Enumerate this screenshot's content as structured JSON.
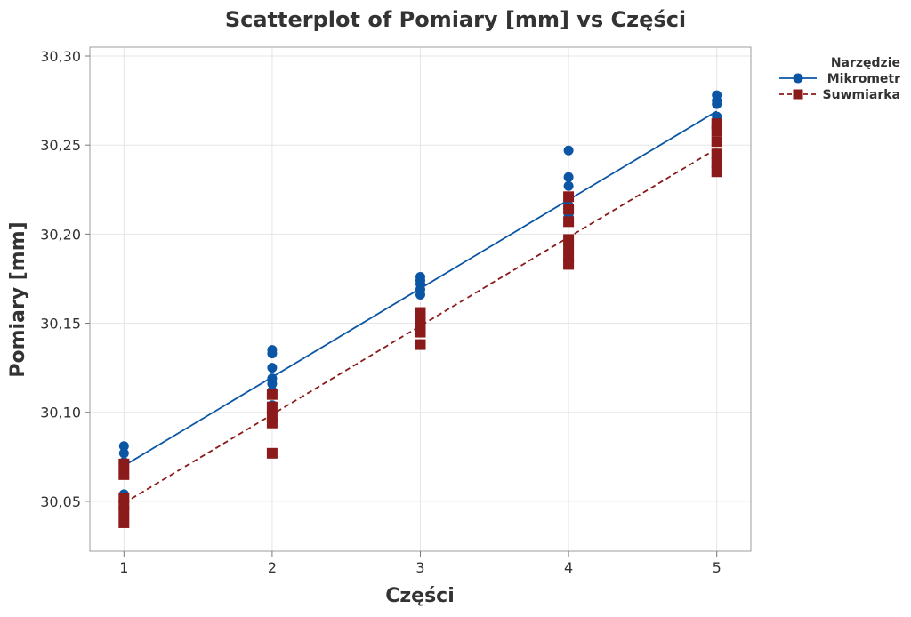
{
  "chart_data": {
    "type": "scatter",
    "title": "Scatterplot of Pomiary [mm] vs Części",
    "xlabel": "Części",
    "ylabel": "Pomiary [mm]",
    "xlim": [
      0.77,
      5.23
    ],
    "ylim": [
      30.022,
      30.305
    ],
    "x_ticks": [
      1,
      2,
      3,
      4,
      5
    ],
    "x_tick_labels": [
      "1",
      "2",
      "3",
      "4",
      "5"
    ],
    "y_ticks": [
      30.05,
      30.1,
      30.15,
      30.2,
      30.25,
      30.3
    ],
    "y_tick_labels": [
      "30,05",
      "30,10",
      "30,15",
      "30,20",
      "30,25",
      "30,30"
    ],
    "grid": true,
    "legend": {
      "title": "Narzędzie",
      "position": "top-right"
    },
    "series": [
      {
        "name": "Mikrometr",
        "color": "#0a56a5",
        "marker": "circle",
        "line_style": "solid",
        "fit_line": {
          "x": [
            1,
            5
          ],
          "y": [
            30.07,
            30.269
          ]
        },
        "points": [
          [
            1,
            30.081
          ],
          [
            1,
            30.077
          ],
          [
            1,
            30.072
          ],
          [
            1,
            30.068
          ],
          [
            1,
            30.054
          ],
          [
            1,
            30.046
          ],
          [
            2,
            30.135
          ],
          [
            2,
            30.133
          ],
          [
            2,
            30.125
          ],
          [
            2,
            30.119
          ],
          [
            2,
            30.116
          ],
          [
            2,
            30.112
          ],
          [
            2,
            30.104
          ],
          [
            3,
            30.176
          ],
          [
            3,
            30.174
          ],
          [
            3,
            30.172
          ],
          [
            3,
            30.169
          ],
          [
            3,
            30.166
          ],
          [
            4,
            30.247
          ],
          [
            4,
            30.232
          ],
          [
            4,
            30.227
          ],
          [
            4,
            30.216
          ],
          [
            4,
            30.212
          ],
          [
            4,
            30.21
          ],
          [
            5,
            30.278
          ],
          [
            5,
            30.275
          ],
          [
            5,
            30.273
          ],
          [
            5,
            30.266
          ],
          [
            5,
            30.262
          ]
        ]
      },
      {
        "name": "Suwmiarka",
        "color": "#8b1a1a",
        "marker": "square",
        "line_style": "dashed",
        "fit_line": {
          "x": [
            1,
            5
          ],
          "y": [
            30.049,
            30.248
          ]
        },
        "points": [
          [
            1,
            30.071
          ],
          [
            1,
            30.065
          ],
          [
            1,
            30.052
          ],
          [
            1,
            30.048
          ],
          [
            1,
            30.044
          ],
          [
            1,
            30.038
          ],
          [
            2,
            30.11
          ],
          [
            2,
            30.103
          ],
          [
            2,
            30.098
          ],
          [
            2,
            30.094
          ],
          [
            2,
            30.077
          ],
          [
            3,
            30.156
          ],
          [
            3,
            30.152
          ],
          [
            3,
            30.148
          ],
          [
            3,
            30.145
          ],
          [
            3,
            30.138
          ],
          [
            4,
            30.221
          ],
          [
            4,
            30.214
          ],
          [
            4,
            30.207
          ],
          [
            4,
            30.197
          ],
          [
            4,
            30.192
          ],
          [
            4,
            30.187
          ],
          [
            4,
            30.183
          ],
          [
            5,
            30.262
          ],
          [
            5,
            30.258
          ],
          [
            5,
            30.252
          ],
          [
            5,
            30.245
          ],
          [
            5,
            30.24
          ],
          [
            5,
            30.235
          ]
        ]
      }
    ]
  }
}
